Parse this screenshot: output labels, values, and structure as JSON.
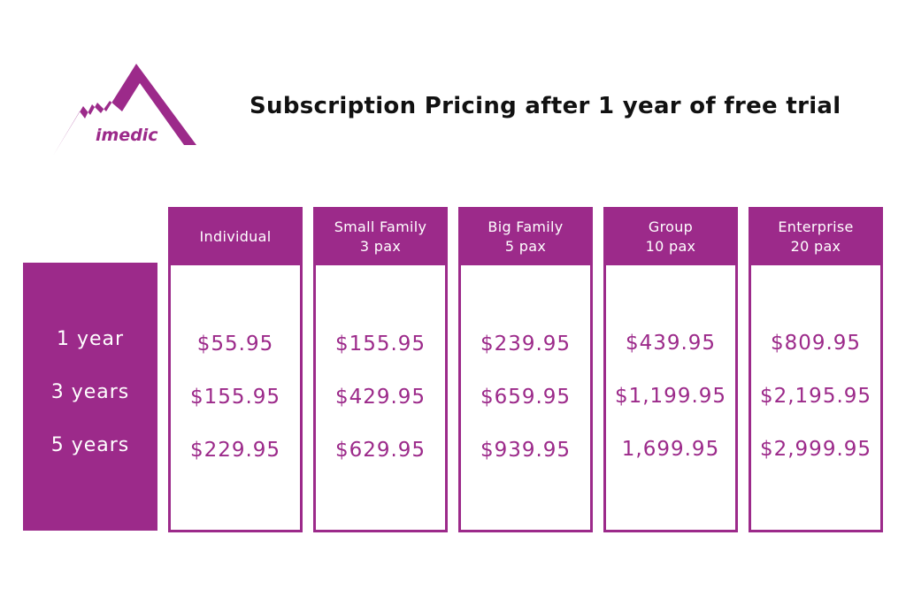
{
  "header": {
    "logo_text": "imedic",
    "title": "Subscription Pricing after 1 year of free trial"
  },
  "colors": {
    "brand": "#9c2a8a",
    "title_text": "#111111",
    "background": "#ffffff"
  },
  "periods": [
    "1 year",
    "3 years",
    "5 years"
  ],
  "plans": [
    {
      "name": "Individual",
      "size": "",
      "prices": [
        "$55.95",
        "$155.95",
        "$229.95"
      ]
    },
    {
      "name": "Small Family",
      "size": "3 pax",
      "prices": [
        "$155.95",
        "$429.95",
        "$629.95"
      ]
    },
    {
      "name": "Big Family",
      "size": "5 pax",
      "prices": [
        "$239.95",
        "$659.95",
        "$939.95"
      ]
    },
    {
      "name": "Group",
      "size": "10 pax",
      "prices": [
        "$439.95",
        "$1,199.95",
        "1,699.95"
      ]
    },
    {
      "name": "Enterprise",
      "size": "20 pax",
      "prices": [
        "$809.95",
        "$2,195.95",
        "$2,999.95"
      ]
    }
  ]
}
